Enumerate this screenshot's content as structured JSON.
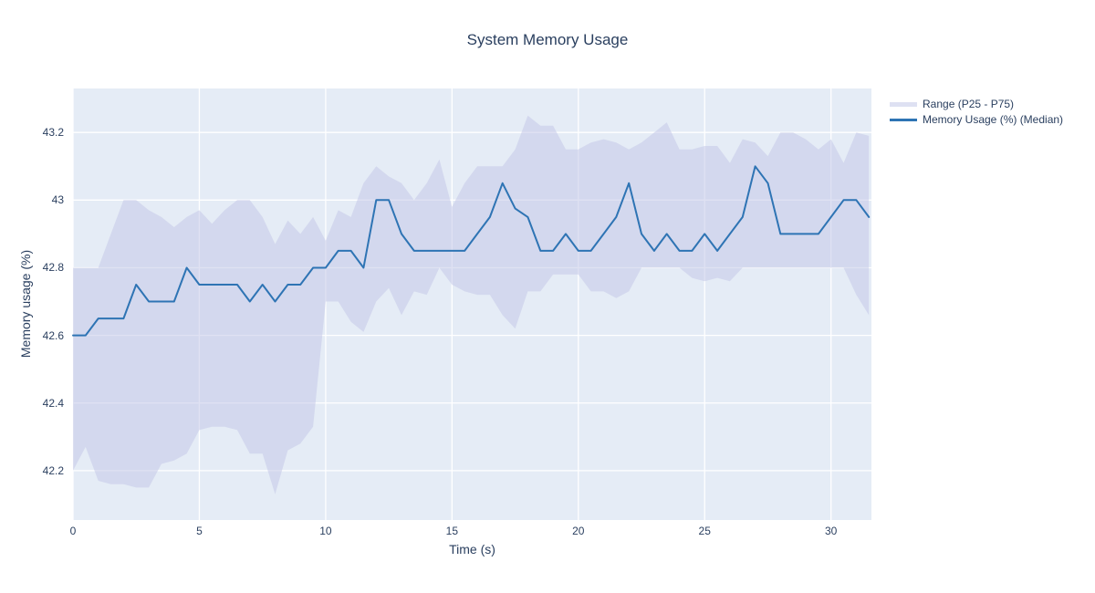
{
  "page": {
    "title": "System Memory Usage"
  },
  "colors": {
    "page_bg": "#ffffff",
    "plot_bg": "#e5ecf6",
    "gridline": "#ffffff",
    "band_fill": "rgba(196,201,231,0.55)",
    "band_legend_swatch": "#dee1f2",
    "median_line": "#2e74b4",
    "text": "#2a3f5f"
  },
  "legend": {
    "items": [
      {
        "label": "Range (P25 - P75)",
        "type": "band",
        "swatch_color": "#dee1f2"
      },
      {
        "label": "Memory Usage (%) (Median)",
        "type": "line",
        "swatch_color": "#2e74b4"
      }
    ]
  },
  "chart_data": {
    "type": "line",
    "title": "System Memory Usage",
    "xlabel": "Time (s)",
    "ylabel": "Memory usage (%)",
    "grid": true,
    "legend_position": "outside-top-right",
    "x_ticks": [
      0,
      5,
      10,
      15,
      20,
      25,
      30
    ],
    "y_ticks": [
      42.2,
      42.4,
      42.6,
      42.8,
      43,
      43.2
    ],
    "xlim": [
      0,
      31.6
    ],
    "ylim": [
      42.054,
      43.33
    ],
    "x": [
      0,
      0.5,
      1,
      1.5,
      2,
      2.5,
      3,
      3.5,
      4,
      4.5,
      5,
      5.5,
      6,
      6.5,
      7,
      7.5,
      8,
      8.5,
      9,
      9.5,
      10,
      10.5,
      11,
      11.5,
      12,
      12.5,
      13,
      13.5,
      14,
      14.5,
      15,
      15.5,
      16,
      16.5,
      17,
      17.5,
      18,
      18.5,
      19,
      19.5,
      20,
      20.5,
      21,
      21.5,
      22,
      22.5,
      23,
      23.5,
      24,
      24.5,
      25,
      25.5,
      26,
      26.5,
      27,
      27.5,
      28,
      28.5,
      29,
      29.5,
      30,
      30.5,
      31,
      31.5
    ],
    "series": [
      {
        "name": "Memory Usage (%) (Median)",
        "type": "line",
        "color": "#2e74b4",
        "values": [
          42.6,
          42.6,
          42.65,
          42.65,
          42.65,
          42.75,
          42.7,
          42.7,
          42.7,
          42.8,
          42.75,
          42.75,
          42.75,
          42.75,
          42.7,
          42.75,
          42.7,
          42.75,
          42.75,
          42.8,
          42.8,
          42.85,
          42.85,
          42.8,
          43.0,
          43.0,
          42.9,
          42.85,
          42.85,
          42.85,
          42.85,
          42.85,
          42.9,
          42.95,
          43.05,
          42.975,
          42.95,
          42.85,
          42.85,
          42.9,
          42.85,
          42.85,
          42.9,
          42.95,
          43.05,
          42.9,
          42.85,
          42.9,
          42.85,
          42.85,
          42.9,
          42.85,
          42.9,
          42.95,
          43.1,
          43.05,
          42.9,
          42.9,
          42.9,
          42.9,
          42.95,
          43.0,
          43.0,
          42.95
        ]
      },
      {
        "name": "Range (P25 - P75)",
        "type": "band",
        "color": "rgba(196,201,231,0.55)",
        "upper": [
          42.8,
          42.8,
          42.8,
          42.9,
          43.0,
          43.0,
          42.97,
          42.95,
          42.92,
          42.95,
          42.97,
          42.93,
          42.97,
          43.0,
          43.0,
          42.95,
          42.87,
          42.94,
          42.9,
          42.95,
          42.88,
          42.97,
          42.95,
          43.05,
          43.1,
          43.07,
          43.05,
          43.0,
          43.05,
          43.12,
          42.98,
          43.05,
          43.1,
          43.1,
          43.1,
          43.15,
          43.25,
          43.22,
          43.22,
          43.15,
          43.15,
          43.17,
          43.18,
          43.17,
          43.15,
          43.17,
          43.2,
          43.23,
          43.15,
          43.15,
          43.16,
          43.16,
          43.11,
          43.18,
          43.17,
          43.13,
          43.2,
          43.2,
          43.18,
          43.15,
          43.18,
          43.11,
          43.2,
          43.19
        ],
        "lower": [
          42.2,
          42.27,
          42.17,
          42.16,
          42.16,
          42.15,
          42.15,
          42.22,
          42.23,
          42.25,
          42.32,
          42.33,
          42.33,
          42.32,
          42.25,
          42.25,
          42.13,
          42.26,
          42.28,
          42.33,
          42.7,
          42.7,
          42.64,
          42.61,
          42.7,
          42.74,
          42.66,
          42.73,
          42.72,
          42.8,
          42.75,
          42.73,
          42.72,
          42.72,
          42.66,
          42.62,
          42.73,
          42.73,
          42.78,
          42.78,
          42.78,
          42.73,
          42.73,
          42.71,
          42.73,
          42.8,
          42.8,
          42.8,
          42.8,
          42.77,
          42.76,
          42.77,
          42.76,
          42.8,
          42.8,
          42.8,
          42.8,
          42.8,
          42.8,
          42.8,
          42.8,
          42.8,
          42.72,
          42.66
        ]
      }
    ]
  }
}
